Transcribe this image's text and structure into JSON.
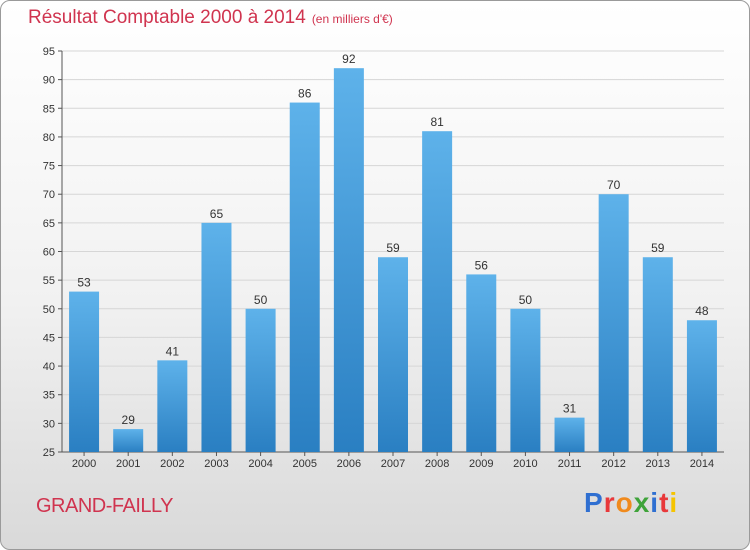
{
  "header": {
    "title": "Résultat Comptable 2000 à 2014",
    "unit": "(en milliers d'€)"
  },
  "footer": {
    "commune": "GRAND-FAILLY",
    "logo_text": "Proxiti",
    "logo_colors": [
      "#2f6fd1",
      "#e8383a",
      "#f08a1d",
      "#3fa33a",
      "#2f6fd1",
      "#e8383a",
      "#f5c400"
    ]
  },
  "colors": {
    "bar_light": "#5eb2ea",
    "bar_dark": "#2a7fc2",
    "title": "#d0344f",
    "grid": "#d6d6d6"
  },
  "chart_data": {
    "type": "bar",
    "title": "Résultat Comptable 2000 à 2014",
    "unit": "(en milliers d'€)",
    "categories": [
      "2000",
      "2001",
      "2002",
      "2003",
      "2004",
      "2005",
      "2006",
      "2007",
      "2008",
      "2009",
      "2010",
      "2011",
      "2012",
      "2013",
      "2014"
    ],
    "values": [
      53,
      29,
      41,
      65,
      50,
      86,
      92,
      59,
      81,
      56,
      50,
      31,
      70,
      59,
      48
    ],
    "ylim": [
      25,
      95
    ],
    "yticks": [
      25,
      30,
      35,
      40,
      45,
      50,
      55,
      60,
      65,
      70,
      75,
      80,
      85,
      90,
      95
    ],
    "grid": true,
    "data_labels": true
  }
}
